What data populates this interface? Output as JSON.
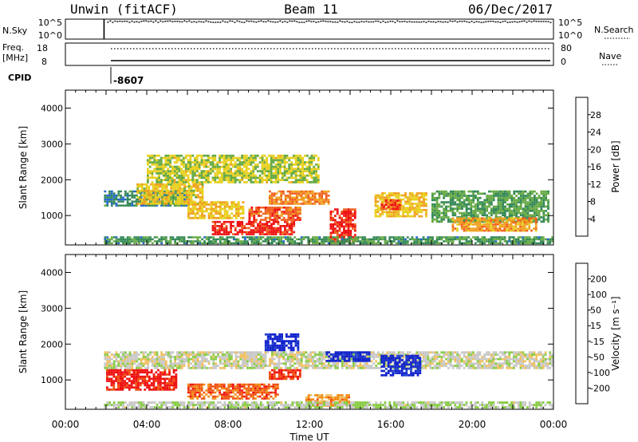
{
  "header": {
    "radar": "Unwin (fitACF)",
    "beam": "Beam 11",
    "date": "06/Dec/2017"
  },
  "status_panels": {
    "nsky": {
      "label": "N.Sky",
      "y_ticks": [
        "10^5",
        "10^0"
      ],
      "right_ticks": [
        "10^5",
        "10^0"
      ],
      "right_label": "N.Search"
    },
    "freq": {
      "label_line1": "Freq.",
      "label_line2": "[MHz]",
      "y_ticks": [
        "18",
        "8"
      ],
      "right_ticks": [
        "80",
        "0"
      ],
      "right_label": "Nave"
    },
    "cpid": {
      "label": "CPID",
      "value": "-8607",
      "start_hour": 1.9
    }
  },
  "time_axis": {
    "label": "Time UT",
    "ticks": [
      "00:00",
      "04:00",
      "08:00",
      "12:00",
      "16:00",
      "20:00",
      "00:00"
    ],
    "range_hours": [
      0,
      24
    ]
  },
  "chart_data": [
    {
      "type": "heatmap",
      "parameter": "power",
      "ylabel": "Slant Range [km]",
      "yticks": [
        "1000",
        "2000",
        "3000",
        "4000"
      ],
      "ylim": [
        180,
        4500
      ],
      "xlim": [
        0,
        24
      ],
      "colorbar": {
        "label": "Power [dB]",
        "tick_labels": [
          "4",
          "8",
          "12",
          "16",
          "20",
          "24",
          "28"
        ],
        "range": [
          0,
          32
        ],
        "colors": [
          "#0022ee",
          "#2266cc",
          "#338855",
          "#66aa44",
          "#e8d020",
          "#f0a020",
          "#f06020",
          "#ee1111"
        ]
      },
      "features": [
        {
          "hours": [
            1.9,
            6.0
          ],
          "range_km": [
            1250,
            1700
          ],
          "level": 0.28
        },
        {
          "hours": [
            3.5,
            6.8
          ],
          "range_km": [
            1300,
            1900
          ],
          "level": 0.58
        },
        {
          "hours": [
            6.0,
            8.8
          ],
          "range_km": [
            900,
            1400
          ],
          "level": 0.62
        },
        {
          "hours": [
            7.2,
            11.3
          ],
          "range_km": [
            450,
            850
          ],
          "level": 0.93
        },
        {
          "hours": [
            9.0,
            11.6
          ],
          "range_km": [
            850,
            1250
          ],
          "level": 0.82
        },
        {
          "hours": [
            10.0,
            13.0
          ],
          "range_km": [
            1300,
            1700
          ],
          "level": 0.75
        },
        {
          "hours": [
            13.0,
            14.3
          ],
          "range_km": [
            250,
            1200
          ],
          "level": 0.9
        },
        {
          "hours": [
            15.2,
            17.8
          ],
          "range_km": [
            950,
            1650
          ],
          "level": 0.62
        },
        {
          "hours": [
            15.5,
            16.5
          ],
          "range_km": [
            1150,
            1450
          ],
          "level": 0.85
        },
        {
          "hours": [
            18.0,
            23.8
          ],
          "range_km": [
            800,
            1700
          ],
          "level": 0.38
        },
        {
          "hours": [
            19.0,
            23.2
          ],
          "range_km": [
            550,
            950
          ],
          "level": 0.7
        },
        {
          "hours": [
            1.9,
            24.0
          ],
          "range_km": [
            200,
            420
          ],
          "level": 0.35
        },
        {
          "hours": [
            4.0,
            12.5
          ],
          "range_km": [
            1900,
            2700
          ],
          "level": 0.52
        }
      ]
    },
    {
      "type": "heatmap",
      "parameter": "velocity",
      "ylabel": "Slant Range [km]",
      "yticks": [
        "1000",
        "2000",
        "3000",
        "4000"
      ],
      "ylim": [
        180,
        4500
      ],
      "xlim": [
        0,
        24
      ],
      "colorbar": {
        "label": "Velocity [m s⁻¹]",
        "tick_labels": [
          "-200",
          "-100",
          "-50",
          "-15",
          "15",
          "50",
          "100",
          "200"
        ],
        "range": [
          -250,
          250
        ],
        "colors": [
          "#ee1111",
          "#f05010",
          "#f08a10",
          "#f0c060",
          "#c8c8c8",
          "#88cc44",
          "#33aa66",
          "#2244cc",
          "#1122cc"
        ]
      },
      "features": [
        {
          "hours": [
            1.9,
            24.0
          ],
          "range_km": [
            1300,
            1800
          ],
          "level": 0.5
        },
        {
          "hours": [
            2.0,
            5.5
          ],
          "range_km": [
            700,
            1300
          ],
          "level": 0.05
        },
        {
          "hours": [
            6.0,
            10.5
          ],
          "range_km": [
            450,
            900
          ],
          "level": 0.18
        },
        {
          "hours": [
            9.8,
            11.5
          ],
          "range_km": [
            1800,
            2300
          ],
          "level": 0.95
        },
        {
          "hours": [
            10.0,
            11.6
          ],
          "range_km": [
            1000,
            1300
          ],
          "level": 0.1
        },
        {
          "hours": [
            12.8,
            15.0
          ],
          "range_km": [
            1500,
            1800
          ],
          "level": 0.95
        },
        {
          "hours": [
            15.5,
            17.5
          ],
          "range_km": [
            1100,
            1700
          ],
          "level": 0.95
        },
        {
          "hours": [
            11.8,
            14.0
          ],
          "range_km": [
            250,
            600
          ],
          "level": 0.3
        },
        {
          "hours": [
            1.9,
            24.0
          ],
          "range_km": [
            200,
            400
          ],
          "level": 0.55
        }
      ]
    }
  ]
}
